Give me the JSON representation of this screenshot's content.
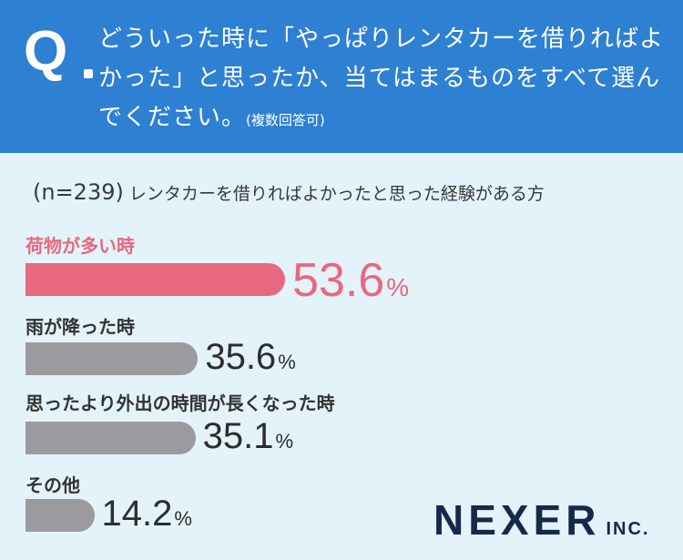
{
  "question": {
    "mark": "Q",
    "text": "どういった時に「やっぱりレンタカーを借りればよかった」と思ったか、当てはまるものをすべて選んでください。",
    "note": "(複数回答可)"
  },
  "sample": {
    "n_label": "(n=239)",
    "description": "レンタカーを借りればよかったと思った経験がある方"
  },
  "chart_data": {
    "type": "bar",
    "orientation": "horizontal",
    "unit": "%",
    "categories": [
      "荷物が多い時",
      "雨が降った時",
      "思ったより外出の時間が長くなった時",
      "その他"
    ],
    "values": [
      53.6,
      35.6,
      35.1,
      14.2
    ],
    "value_labels": [
      "53.6",
      "35.6",
      "35.1",
      "14.2"
    ],
    "highlight_index": 0,
    "xlim": [
      0,
      100
    ],
    "colors": {
      "highlight": "#e8687f",
      "default": "#9b9b9f"
    }
  },
  "brand": {
    "name": "NEXER",
    "suffix": "INC."
  },
  "colors": {
    "header_bg": "#2e80d2",
    "page_bg": "#e3f3f9"
  }
}
